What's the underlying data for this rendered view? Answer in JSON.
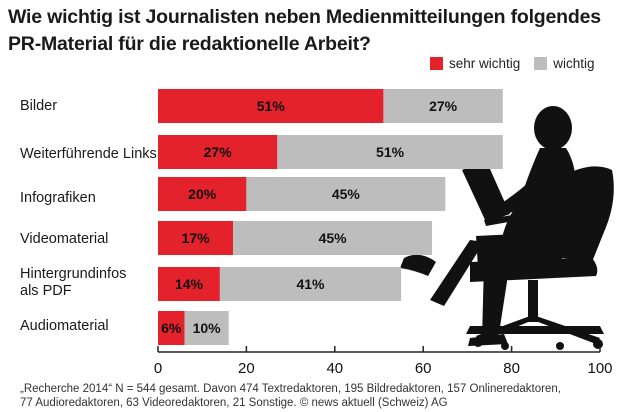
{
  "chart_data": {
    "type": "bar",
    "orientation": "horizontal",
    "stacked": true,
    "title": "Wie wichtig ist Journalisten neben Medienmitteilungen folgendes PR-Material für die redaktionelle Arbeit?",
    "categories": [
      "Bilder",
      "Weiterführende Links",
      "Infografiken",
      "Videomaterial",
      "Hintergrundinfos als PDF",
      "Audiomaterial"
    ],
    "series": [
      {
        "name": "sehr wichtig",
        "color": "#e3222b",
        "values": [
          51,
          27,
          20,
          17,
          14,
          6
        ],
        "labels": [
          "51%",
          "27%",
          "20%",
          "17%",
          "14%",
          "6%"
        ]
      },
      {
        "name": "wichtig",
        "color": "#bdbdbd",
        "values": [
          27,
          51,
          45,
          45,
          41,
          10
        ],
        "labels": [
          "27%",
          "51%",
          "45%",
          "45%",
          "41%",
          "10%"
        ]
      }
    ],
    "xlim": [
      0,
      100
    ],
    "xticks": [
      "0",
      "20",
      "40",
      "60",
      "80",
      "100"
    ],
    "legend_position": "top-right",
    "grid": false
  },
  "title_line1": "Wie wichtig ist Journalisten neben Medienmitteilungen folgendes",
  "title_line2": "PR-Material für die redaktionelle Arbeit?",
  "category_lines": [
    [
      "Bilder"
    ],
    [
      "Weiterführende Links"
    ],
    [
      "Infografiken"
    ],
    [
      "Videomaterial"
    ],
    [
      "Hintergrundinfos",
      "als PDF"
    ],
    [
      "Audiomaterial"
    ]
  ],
  "footnote_line1": "„Recherche 2014“ N = 544 gesamt. Davon 474 Textredaktoren, 195 Bildredaktoren, 157 Onlineredaktoren,",
  "footnote_line2": "77 Audioredaktoren, 63 Videoredaktoren, 21 Sonstige. © news aktuell (Schweiz) AG",
  "illustration": "silhouette-person-laptop-office-chair"
}
